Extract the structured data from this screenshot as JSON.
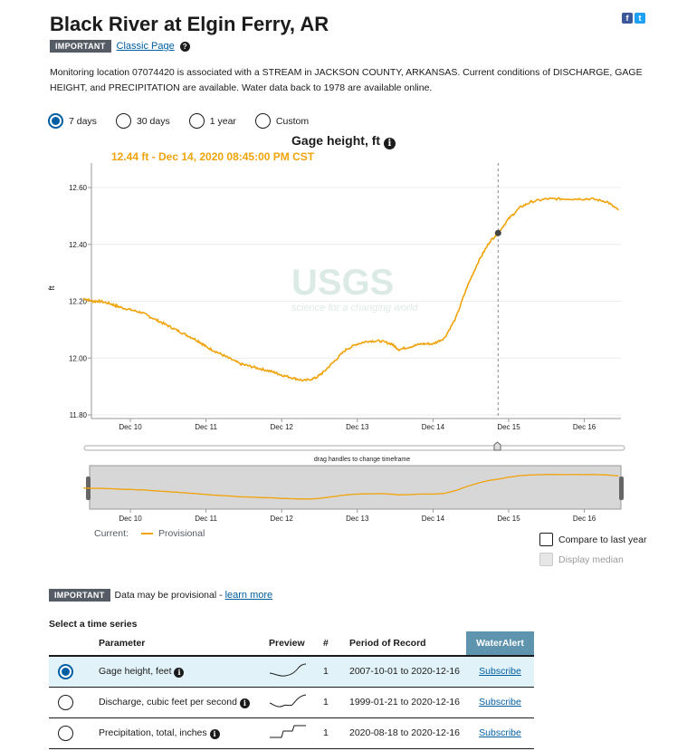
{
  "page": {
    "title": "Black River at Elgin Ferry, AR",
    "important_badge": "IMPORTANT",
    "classic_page_link": "Classic Page",
    "help_icon": "question-circle-icon",
    "description": "Monitoring location 07074420 is associated with a STREAM in JACKSON COUNTY, ARKANSAS. Current conditions of DISCHARGE, GAGE HEIGHT, and PRECIPITATION are available. Water data back to 1978 are available online."
  },
  "social": {
    "facebook": "f",
    "twitter": "t",
    "facebook_color": "#3b5998",
    "twitter_color": "#1da1f2"
  },
  "time_span": {
    "options": [
      {
        "label": "7 days",
        "selected": true
      },
      {
        "label": "30 days",
        "selected": false
      },
      {
        "label": "1 year",
        "selected": false
      },
      {
        "label": "Custom",
        "selected": false
      }
    ]
  },
  "graph": {
    "title": "Gage height, ft",
    "tooltip": "12.44 ft - Dec 14, 2020 08:45:00 PM CST",
    "ylabel": "ft",
    "drag_hint": "drag handles to change timeframe",
    "watermark_main": "USGS",
    "watermark_sub": "science for a changing world"
  },
  "chart_data": {
    "type": "line",
    "title": "Gage height, ft",
    "ylabel": "ft",
    "ylim": [
      11.8,
      12.7
    ],
    "yticks": [
      "11.80",
      "12.00",
      "12.20",
      "12.40",
      "12.60"
    ],
    "xticks": [
      "Dec 10",
      "Dec 11",
      "Dec 12",
      "Dec 13",
      "Dec 14",
      "Dec 15",
      "Dec 16"
    ],
    "x_days_start": "Dec 09 00:00",
    "series": [
      {
        "name": "Provisional",
        "color": "#f0a30a",
        "x": [
          9.38,
          9.5,
          9.6,
          9.75,
          9.85,
          10.0,
          10.15,
          10.3,
          10.45,
          10.6,
          10.75,
          10.9,
          11.0,
          11.15,
          11.3,
          11.45,
          11.6,
          11.75,
          11.9,
          12.0,
          12.15,
          12.3,
          12.45,
          12.55,
          12.7,
          12.85,
          13.0,
          13.15,
          13.3,
          13.45,
          13.55,
          13.7,
          13.85,
          14.0,
          14.15,
          14.3,
          14.45,
          14.6,
          14.75,
          14.86,
          15.0,
          15.15,
          15.3,
          15.5,
          15.7,
          15.9,
          16.1,
          16.3,
          16.45
        ],
        "y": [
          12.21,
          12.2,
          12.2,
          12.19,
          12.18,
          12.17,
          12.16,
          12.14,
          12.12,
          12.1,
          12.08,
          12.06,
          12.04,
          12.02,
          12.0,
          11.98,
          11.97,
          11.96,
          11.95,
          11.94,
          11.93,
          11.92,
          11.93,
          11.95,
          11.99,
          12.03,
          12.05,
          12.06,
          12.06,
          12.05,
          12.03,
          12.04,
          12.05,
          12.05,
          12.07,
          12.14,
          12.25,
          12.34,
          12.41,
          12.44,
          12.49,
          12.53,
          12.55,
          12.56,
          12.56,
          12.56,
          12.56,
          12.55,
          12.52
        ]
      }
    ],
    "hover_point": {
      "x": 14.86,
      "y": 12.44
    },
    "legend": {
      "label": "Current:",
      "series": "Provisional"
    },
    "brush_xticks": [
      "Dec 10",
      "Dec 11",
      "Dec 12",
      "Dec 13",
      "Dec 14",
      "Dec 15",
      "Dec 16"
    ]
  },
  "options": {
    "compare_last_year": "Compare to last year",
    "display_median": "Display median"
  },
  "notice": {
    "badge": "IMPORTANT",
    "text": "Data may be provisional - ",
    "link": "learn more"
  },
  "time_series": {
    "label": "Select a time series",
    "headers": {
      "parameter": "Parameter",
      "preview": "Preview",
      "count": "#",
      "period": "Period of Record",
      "alert": "WaterAlert"
    },
    "rows": [
      {
        "selected": true,
        "parameter": "Gage height, feet",
        "count": "1",
        "period": "2007-10-01 to 2020-12-16",
        "alert": "Subscribe"
      },
      {
        "selected": false,
        "parameter": "Discharge, cubic feet per second",
        "count": "1",
        "period": "1999-01-21 to 2020-12-16",
        "alert": "Subscribe"
      },
      {
        "selected": false,
        "parameter": "Precipitation, total, inches",
        "count": "1",
        "period": "2020-08-18 to 2020-12-16",
        "alert": "Subscribe"
      }
    ]
  }
}
